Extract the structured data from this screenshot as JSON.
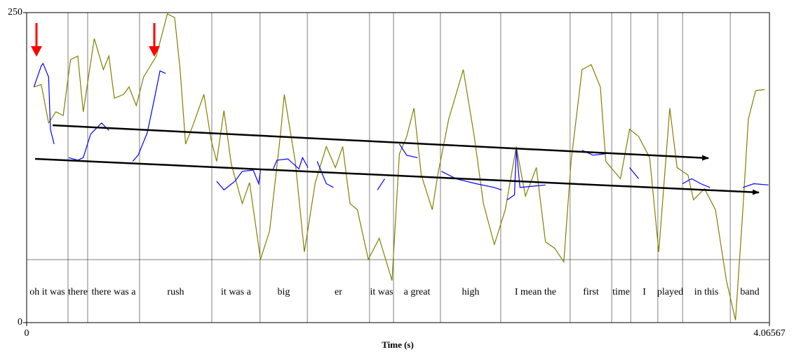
{
  "chart_data": {
    "type": "line",
    "xlabel": "Time (s)",
    "xlim": [
      0,
      4.06567
    ],
    "ylim": [
      0,
      250
    ],
    "xticks": [
      0,
      4.06567
    ],
    "yticks": [
      0,
      250
    ],
    "series": [
      {
        "color": "#808000",
        "x": [
          0.04,
          0.08,
          0.12,
          0.16,
          0.2,
          0.24,
          0.28,
          0.31,
          0.37,
          0.42,
          0.45,
          0.48,
          0.53,
          0.56,
          0.6,
          0.64,
          0.71,
          0.77,
          0.81,
          0.84,
          0.87,
          0.91,
          0.97,
          1.01,
          1.04,
          1.08,
          1.12,
          1.18,
          1.22,
          1.28,
          1.33,
          1.39,
          1.41,
          1.47,
          1.52,
          1.58,
          1.64,
          1.69,
          1.73,
          1.77,
          1.81,
          1.87,
          1.93,
          2.0,
          2.04,
          2.08,
          2.12,
          2.16,
          2.22,
          2.25,
          2.31,
          2.39,
          2.45,
          2.5,
          2.56,
          2.62,
          2.68,
          2.73,
          2.79,
          2.84,
          2.89,
          2.94,
          2.98,
          3.04,
          3.09,
          3.14,
          3.17,
          3.25,
          3.3,
          3.35,
          3.41,
          3.46,
          3.52,
          3.56,
          3.62,
          3.65,
          3.71,
          3.77,
          3.83,
          3.88,
          3.92,
          3.95,
          3.99,
          4.04
        ],
        "values": [
          190,
          192,
          161,
          170,
          167,
          212,
          215,
          170,
          229,
          204,
          215,
          181,
          184,
          190,
          175,
          198,
          215,
          249,
          246,
          204,
          144,
          159,
          184,
          147,
          130,
          171,
          128,
          96,
          113,
          51,
          74,
          153,
          184,
          130,
          57,
          113,
          142,
          125,
          142,
          96,
          91,
          51,
          68,
          34,
          136,
          150,
          173,
          119,
          91,
          119,
          164,
          204,
          150,
          96,
          63,
          91,
          142,
          102,
          125,
          65,
          60,
          49,
          130,
          204,
          208,
          190,
          130,
          116,
          156,
          150,
          133,
          57,
          173,
          125,
          119,
          99,
          108,
          91,
          34,
          2,
          91,
          164,
          187,
          188
        ]
      },
      {
        "color": "#0000ff",
        "x": [
          0.04,
          0.08,
          0.09,
          0.12,
          0.13,
          0.15,
          null,
          0.23,
          0.28,
          0.31,
          0.35,
          0.41,
          0.45,
          null,
          0.58,
          0.61,
          0.66,
          0.7,
          0.73,
          0.76,
          null,
          1.04,
          1.08,
          1.14,
          1.18,
          1.24,
          1.27,
          1.28,
          null,
          1.35,
          1.37,
          1.43,
          1.49,
          1.51,
          1.54,
          null,
          1.59,
          1.64,
          1.68,
          null,
          1.92,
          1.96,
          null,
          2.04,
          2.08,
          2.14,
          null,
          2.27,
          2.35,
          2.46,
          2.56,
          2.6,
          null,
          2.63,
          2.67,
          2.68,
          2.7,
          2.77,
          2.84,
          null,
          3.04,
          3.1,
          3.16,
          3.2,
          null,
          3.3,
          3.35,
          null,
          3.59,
          3.64,
          3.69,
          3.74,
          null,
          3.92,
          3.98,
          4.06
        ],
        "values": [
          190,
          207,
          209,
          198,
          156,
          144,
          null,
          133,
          131,
          133,
          152,
          161,
          155,
          null,
          130,
          135,
          153,
          181,
          203,
          201,
          null,
          114,
          107,
          114,
          122,
          123,
          112,
          123,
          null,
          124,
          131,
          132,
          124,
          133,
          125,
          null,
          130,
          112,
          109,
          null,
          107,
          116,
          null,
          144,
          135,
          133,
          null,
          122,
          116,
          112,
          109,
          107,
          null,
          99,
          103,
          140,
          109,
          110,
          111,
          null,
          139,
          135,
          136,
          137,
          null,
          125,
          116,
          null,
          112,
          116,
          112,
          109,
          null,
          109,
          112,
          111
        ]
      }
    ],
    "tier": {
      "boundaries": [
        0.2265,
        0.334,
        0.618,
        1.0135,
        1.278,
        1.536,
        1.877,
        2.008,
        2.265,
        2.595,
        2.975,
        3.202,
        3.306,
        3.455,
        3.59,
        3.851
      ],
      "labels": [
        "oh it was",
        "there",
        "there was a",
        "rush",
        "it was a",
        "big",
        "er",
        "it was",
        "a great",
        "high",
        "I mean the",
        "first",
        "time",
        "I",
        "played",
        "in this",
        "band"
      ]
    }
  }
}
